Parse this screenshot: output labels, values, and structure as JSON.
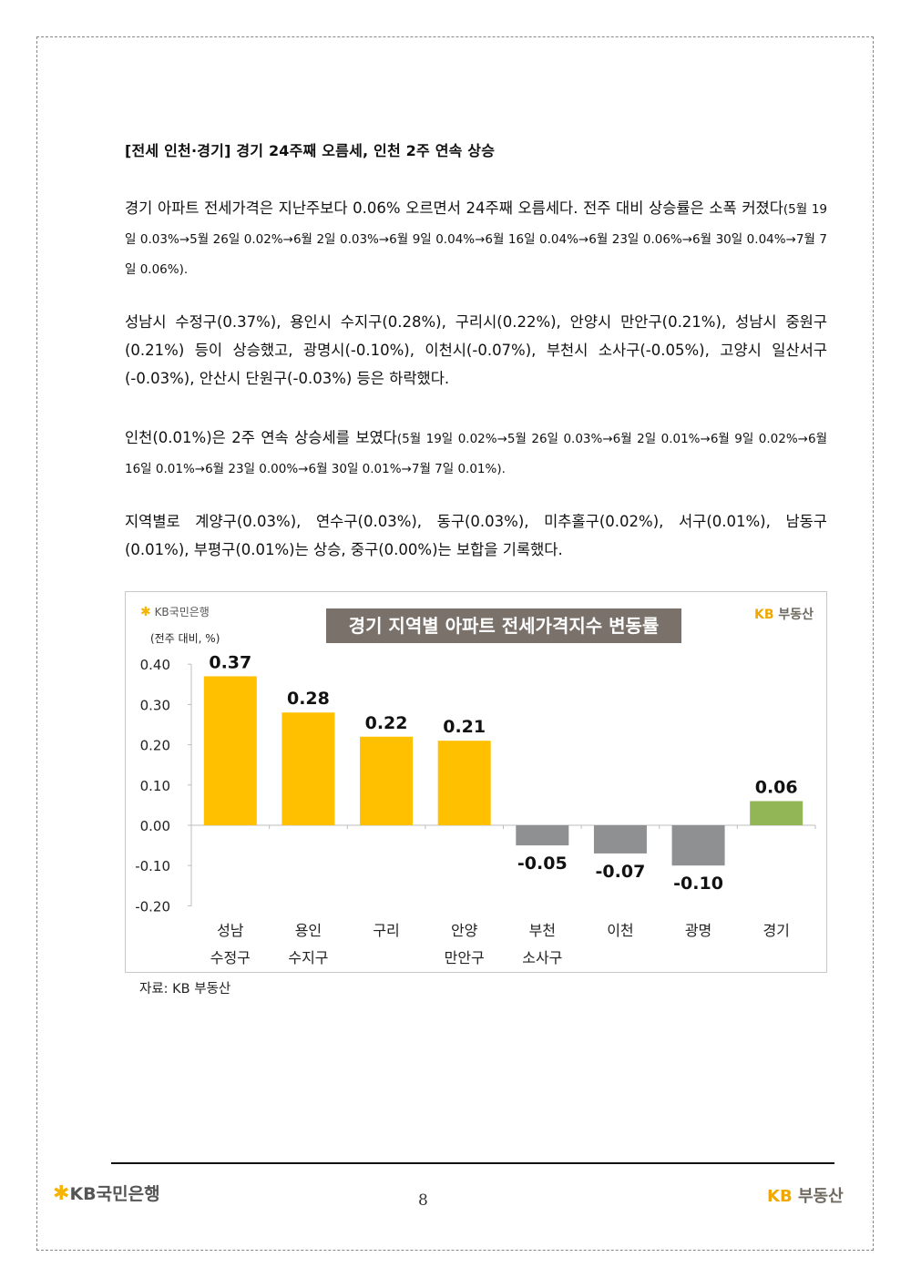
{
  "heading": "[전세 인천·경기] 경기 24주째 오름세, 인천 2주 연속 상승",
  "paragraphs": {
    "p1_main": "경기 아파트 전세가격은 지난주보다 0.06% 오르면서 24주째 오름세다. 전주 대비 상승률은 소폭 커졌다",
    "p1_detail": "(5월 19일 0.03%→5월 26일 0.02%→6월 2일 0.03%→6월 9일 0.04%→6월 16일 0.04%→6월 23일 0.06%→6월 30일 0.04%→7월 7일 0.06%).",
    "p2": "성남시 수정구(0.37%), 용인시 수지구(0.28%), 구리시(0.22%), 안양시 만안구(0.21%), 성남시 중원구(0.21%) 등이 상승했고, 광명시(-0.10%), 이천시(-0.07%), 부천시 소사구(-0.05%), 고양시 일산서구(-0.03%), 안산시 단원구(-0.03%) 등은 하락했다.",
    "p3_main": "인천(0.01%)은 2주 연속 상승세를 보였다",
    "p3_detail": "(5월 19일 0.02%→5월 26일 0.03%→6월 2일 0.01%→6월 9일 0.02%→6월 16일 0.01%→6월 23일 0.00%→6월 30일 0.01%→7월 7일 0.01%).",
    "p4": "지역별로 계양구(0.03%), 연수구(0.03%), 동구(0.03%), 미추홀구(0.02%), 서구(0.01%), 남동구(0.01%), 부평구(0.01%)는 상승, 중구(0.00%)는 보합을 기록했다."
  },
  "logos": {
    "kb_bank": "KB국민은행",
    "kb_realestate_kb": "KB",
    "kb_realestate_name": "부동산"
  },
  "chart_data": {
    "type": "bar",
    "title": "경기 지역별 아파트 전세가격지수 변동률",
    "ylabel": "(전주 대비, %)",
    "categories": [
      [
        "성남",
        "수정구"
      ],
      [
        "용인",
        "수지구"
      ],
      [
        "구리",
        ""
      ],
      [
        "안양",
        "만안구"
      ],
      [
        "부천",
        "소사구"
      ],
      [
        "이천",
        ""
      ],
      [
        "광명",
        ""
      ],
      [
        "경기",
        ""
      ]
    ],
    "values": [
      0.37,
      0.28,
      0.22,
      0.21,
      -0.05,
      -0.07,
      -0.1,
      0.06
    ],
    "value_labels": [
      "0.37",
      "0.28",
      "0.22",
      "0.21",
      "-0.05",
      "-0.07",
      "-0.10",
      "0.06"
    ],
    "ylim": [
      -0.2,
      0.4
    ],
    "yticks": [
      "0.40",
      "0.30",
      "0.20",
      "0.10",
      "0.00",
      "-0.10",
      "-0.20"
    ],
    "ytick_values": [
      0.4,
      0.3,
      0.2,
      0.1,
      0.0,
      -0.1,
      -0.2
    ],
    "bar_colors": [
      "#ffc000",
      "#ffc000",
      "#ffc000",
      "#ffc000",
      "#8e9092",
      "#8e9092",
      "#8e9092",
      "#92b556"
    ],
    "grid": false
  },
  "source": "자료: KB 부동산",
  "page_number": "8"
}
